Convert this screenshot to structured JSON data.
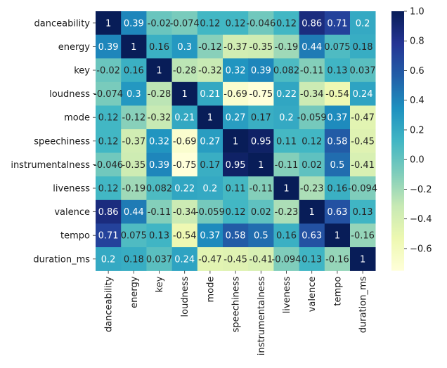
{
  "chart_data": {
    "type": "heatmap",
    "title": "",
    "xlabel": "",
    "ylabel": "",
    "colormap": "YlGnBu",
    "categories": [
      "danceability",
      "energy",
      "key",
      "loudness",
      "mode",
      "speechiness",
      "instrumentalness",
      "liveness",
      "valence",
      "tempo",
      "duration_ms"
    ],
    "values": [
      [
        1,
        0.39,
        -0.02,
        -0.074,
        0.12,
        0.12,
        -0.046,
        0.12,
        0.86,
        0.71,
        0.2
      ],
      [
        0.39,
        1,
        0.16,
        0.3,
        -0.12,
        -0.37,
        -0.35,
        -0.19,
        0.44,
        0.075,
        0.18
      ],
      [
        -0.02,
        0.16,
        1,
        -0.28,
        -0.32,
        0.32,
        0.39,
        0.082,
        -0.11,
        0.13,
        0.037
      ],
      [
        -0.074,
        0.3,
        -0.28,
        1,
        0.21,
        -0.69,
        -0.75,
        0.22,
        -0.34,
        -0.54,
        0.24
      ],
      [
        0.12,
        -0.12,
        -0.32,
        0.21,
        1,
        0.27,
        0.17,
        0.2,
        -0.059,
        0.37,
        -0.47
      ],
      [
        0.12,
        -0.37,
        0.32,
        -0.69,
        0.27,
        1,
        0.95,
        0.11,
        0.12,
        0.58,
        -0.45
      ],
      [
        -0.046,
        -0.35,
        0.39,
        -0.75,
        0.17,
        0.95,
        1,
        -0.11,
        0.02,
        0.5,
        -0.41
      ],
      [
        0.12,
        -0.19,
        0.082,
        0.22,
        0.2,
        0.11,
        -0.11,
        1,
        -0.23,
        0.16,
        -0.094
      ],
      [
        0.86,
        0.44,
        -0.11,
        -0.34,
        -0.059,
        0.12,
        0.02,
        -0.23,
        1,
        0.63,
        0.13
      ],
      [
        0.71,
        0.075,
        0.13,
        -0.54,
        0.37,
        0.58,
        0.5,
        0.16,
        0.63,
        1,
        -0.16
      ],
      [
        0.2,
        0.18,
        0.037,
        0.24,
        -0.47,
        -0.45,
        -0.41,
        -0.094,
        0.13,
        -0.16,
        1
      ]
    ],
    "cell_labels": [
      [
        "1",
        "0.39",
        "-0.02",
        "-0.074",
        "0.12",
        "0.12",
        "-0.046",
        "0.12",
        "0.86",
        "0.71",
        "0.2"
      ],
      [
        "0.39",
        "1",
        "0.16",
        "0.3",
        "-0.12",
        "-0.37",
        "-0.35",
        "-0.19",
        "0.44",
        "0.075",
        "0.18"
      ],
      [
        "-0.02",
        "0.16",
        "1",
        "-0.28",
        "-0.32",
        "0.32",
        "0.39",
        "0.082",
        "-0.11",
        "0.13",
        "0.037"
      ],
      [
        "-0.074",
        "0.3",
        "-0.28",
        "1",
        "0.21",
        "-0.69",
        "-0.75",
        "0.22",
        "-0.34",
        "-0.54",
        "0.24"
      ],
      [
        "0.12",
        "-0.12",
        "-0.32",
        "0.21",
        "1",
        "0.27",
        "0.17",
        "0.2",
        "-0.059",
        "0.37",
        "-0.47"
      ],
      [
        "0.12",
        "-0.37",
        "0.32",
        "-0.69",
        "0.27",
        "1",
        "0.95",
        "0.11",
        "0.12",
        "0.58",
        "-0.45"
      ],
      [
        "-0.046",
        "-0.35",
        "0.39",
        "-0.75",
        "0.17",
        "0.95",
        "1",
        "-0.11",
        "0.02",
        "0.5",
        "-0.41"
      ],
      [
        "0.12",
        "-0.19",
        "0.082",
        "0.22",
        "0.2",
        "0.11",
        "-0.11",
        "1",
        "-0.23",
        "0.16",
        "-0.094"
      ],
      [
        "0.86",
        "0.44",
        "-0.11",
        "-0.34",
        "-0.059",
        "0.12",
        "0.02",
        "-0.23",
        "1",
        "0.63",
        "0.13"
      ],
      [
        "0.71",
        "0.075",
        "0.13",
        "-0.54",
        "0.37",
        "0.58",
        "0.5",
        "0.16",
        "0.63",
        "1",
        "-0.16"
      ],
      [
        "0.2",
        "0.18",
        "0.037",
        "0.24",
        "-0.47",
        "-0.45",
        "-0.41",
        "-0.094",
        "0.13",
        "-0.16",
        "1"
      ]
    ],
    "colorbar": {
      "range": [
        -0.75,
        1.0
      ],
      "ticks": [
        1.0,
        0.8,
        0.6,
        0.4,
        0.2,
        0.0,
        -0.2,
        -0.4,
        -0.6
      ],
      "tick_labels": [
        "1.0",
        "0.8",
        "0.6",
        "0.4",
        "0.2",
        "0.0",
        "−0.2",
        "−0.4",
        "−0.6"
      ]
    },
    "grid": false
  }
}
